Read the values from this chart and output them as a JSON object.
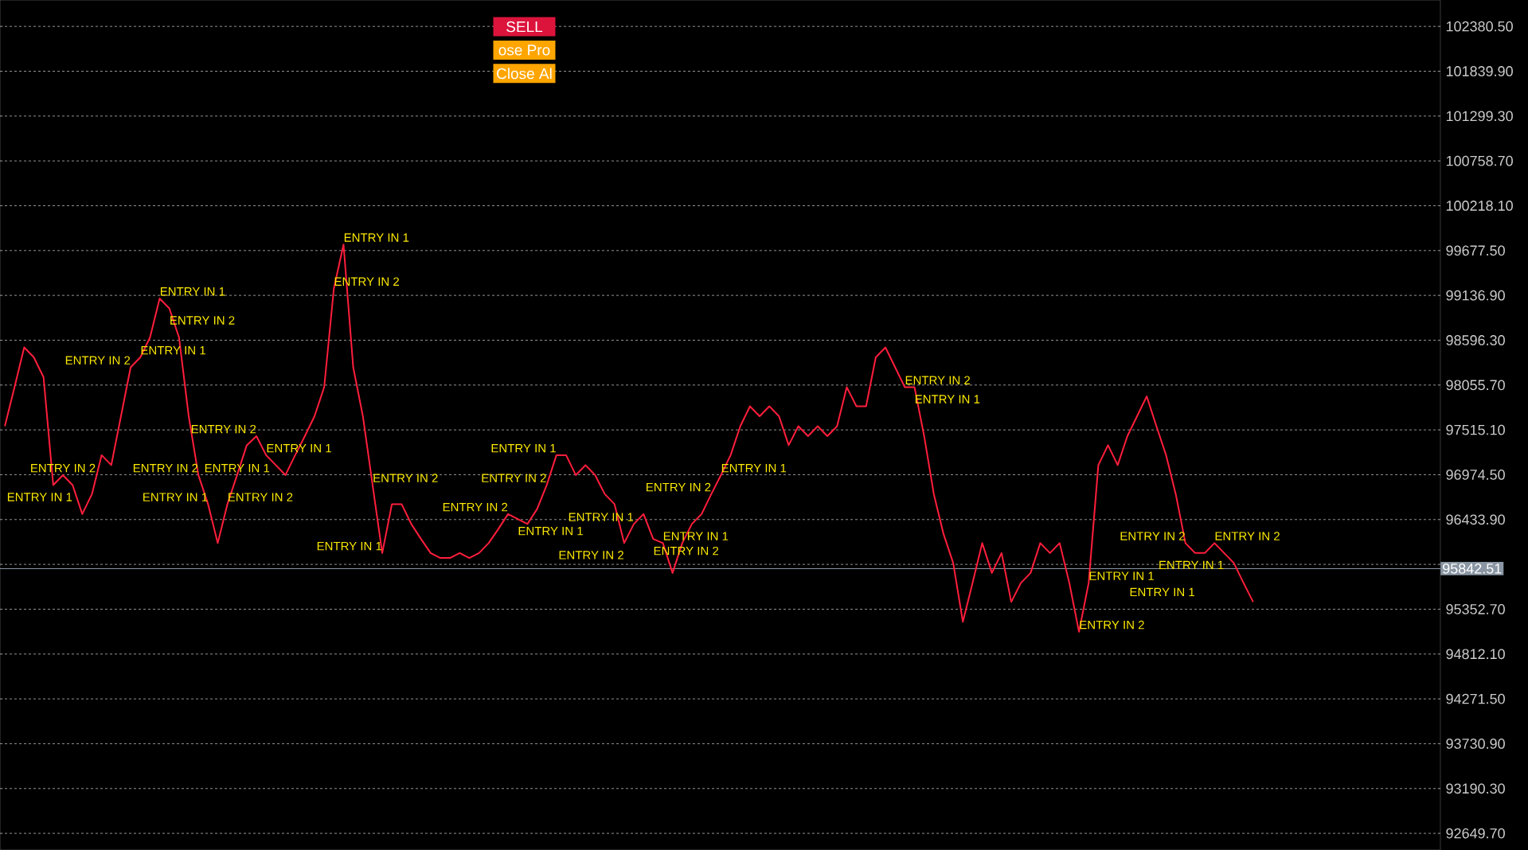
{
  "chart_data": {
    "type": "line",
    "categories": [
      null,
      null,
      null,
      null,
      null,
      null,
      null,
      null,
      null,
      null,
      null,
      null,
      null,
      null,
      null,
      null,
      null,
      null,
      null,
      null,
      null,
      null,
      null,
      null,
      null,
      null,
      null,
      null,
      null,
      null,
      null,
      null,
      null,
      null,
      null,
      null,
      null,
      null,
      null,
      null,
      null,
      null,
      null,
      null,
      null,
      null,
      null,
      null,
      null,
      null,
      null,
      null,
      null,
      null,
      null,
      null,
      null,
      null,
      null,
      null,
      null,
      null,
      null,
      null,
      null,
      null,
      null,
      null,
      null,
      null,
      null,
      null,
      null,
      null,
      null,
      null,
      null,
      null,
      null,
      null,
      null,
      null,
      null,
      null,
      null,
      null,
      null,
      null,
      null,
      null,
      null,
      null,
      null,
      null,
      null,
      null,
      null,
      null,
      null,
      null,
      null,
      null,
      null,
      null,
      null,
      null,
      null,
      null,
      null,
      null,
      null,
      null,
      null,
      null,
      null,
      null,
      null,
      null,
      null,
      null,
      null,
      null,
      null,
      null,
      null,
      null,
      null,
      null,
      null,
      null
    ],
    "series": [
      {
        "color": "#ff1e3c",
        "values": [
          97560,
          98030,
          98510,
          98390,
          98150,
          96850,
          96970,
          96850,
          96500,
          96740,
          97210,
          97090,
          97680,
          98270,
          98390,
          98630,
          99100,
          98980,
          98630,
          97680,
          96970,
          96620,
          96150,
          96620,
          96970,
          97330,
          97440,
          97210,
          97090,
          96970,
          97210,
          97440,
          97680,
          98030,
          99220,
          99750,
          98270,
          97680,
          96850,
          96030,
          96620,
          96620,
          96380,
          96200,
          96030,
          95970,
          95970,
          96030,
          95970,
          96030,
          96150,
          96320,
          96500,
          96440,
          96380,
          96560,
          96850,
          97210,
          97210,
          96970,
          97090,
          96970,
          96740,
          96620,
          96150,
          96380,
          96500,
          96200,
          96150,
          95790,
          96150,
          96380,
          96500,
          96740,
          96970,
          97210,
          97560,
          97800,
          97680,
          97800,
          97680,
          97330,
          97560,
          97440,
          97560,
          97440,
          97560,
          98030,
          97800,
          97800,
          98390,
          98510,
          98270,
          98030,
          98030,
          97440,
          96740,
          96260,
          95910,
          95200,
          95670,
          96150,
          95790,
          96030,
          95440,
          95670,
          95790,
          96150,
          96030,
          96150,
          95670,
          95080,
          95670,
          97090,
          97330,
          97090,
          97440,
          97680,
          97920,
          97560,
          97210,
          96740,
          96150,
          96030,
          96030,
          96150,
          96030,
          95910,
          95670,
          95440
        ],
        "value_labels": [
          null,
          null,
          null,
          null,
          null,
          null,
          "ENTRY IN 2",
          "ENTRY IN 1",
          null,
          null,
          null,
          null,
          null,
          "ENTRY IN 2",
          "ENTRY IN 1",
          null,
          "ENTRY IN 1",
          "ENTRY IN 2",
          null,
          null,
          "ENTRY IN 2",
          "ENTRY IN 1",
          null,
          "ENTRY IN 2",
          "ENTRY IN 1",
          null,
          "ENTRY IN 2",
          "ENTRY IN 1",
          null,
          null,
          null,
          null,
          null,
          null,
          "ENTRY IN 2",
          "ENTRY IN 1",
          null,
          null,
          "ENTRY IN 2",
          "ENTRY IN 1",
          null,
          null,
          null,
          null,
          null,
          null,
          null,
          null,
          null,
          null,
          null,
          null,
          "ENTRY IN 2",
          "ENTRY IN 1",
          null,
          null,
          "ENTRY IN 2",
          "ENTRY IN 1",
          null,
          null,
          null,
          null,
          null,
          null,
          "ENTRY IN 2",
          "ENTRY IN 1",
          null,
          "ENTRY IN 2",
          "ENTRY IN 1",
          null,
          null,
          null,
          null,
          "ENTRY IN 2",
          "ENTRY IN 1",
          null,
          null,
          null,
          null,
          null,
          null,
          null,
          null,
          null,
          null,
          null,
          null,
          null,
          null,
          null,
          null,
          null,
          null,
          "ENTRY IN 2",
          "ENTRY IN 1",
          null,
          null,
          null,
          null,
          null,
          null,
          null,
          null,
          null,
          null,
          null,
          null,
          null,
          null,
          null,
          null,
          "ENTRY IN 2",
          "ENTRY IN 1",
          null,
          null,
          null,
          null,
          null,
          null,
          null,
          null,
          null,
          "ENTRY IN 2",
          "ENTRY IN 1",
          null,
          "ENTRY IN 2",
          "ENTRY IN 1",
          null,
          null,
          null
        ]
      }
    ],
    "ylim": [
      92449,
      102699
    ],
    "yticks": [
      {
        "value": 102380.5,
        "label": "102380.50"
      },
      {
        "value": 101839.9,
        "label": "101839.90"
      },
      {
        "value": 101299.3,
        "label": "101299.30"
      },
      {
        "value": 100758.7,
        "label": "100758.70"
      },
      {
        "value": 100218.1,
        "label": "100218.10"
      },
      {
        "value": 99677.5,
        "label": "99677.50"
      },
      {
        "value": 99136.9,
        "label": "99136.90"
      },
      {
        "value": 98596.3,
        "label": "98596.30"
      },
      {
        "value": 98055.7,
        "label": "98055.70"
      },
      {
        "value": 97515.1,
        "label": "97515.10"
      },
      {
        "value": 96974.5,
        "label": "96974.50"
      },
      {
        "value": 96433.9,
        "label": "96433.90"
      },
      {
        "value": 95893.3,
        "label": null
      },
      {
        "value": 95352.7,
        "label": "95352.70"
      },
      {
        "value": 94812.1,
        "label": "94812.10"
      },
      {
        "value": 94271.5,
        "label": "94271.50"
      },
      {
        "value": 93730.9,
        "label": "93730.90"
      },
      {
        "value": 93190.3,
        "label": "93190.30"
      },
      {
        "value": 92649.7,
        "label": "92649.70"
      }
    ],
    "grid": "y",
    "ref_lines": [
      {
        "axis": "y",
        "value": 95842.51,
        "label": "95842.51",
        "color": "#8a96a3"
      }
    ],
    "annotations": [
      "SELL",
      "ose Pro",
      "Close Al"
    ]
  }
}
